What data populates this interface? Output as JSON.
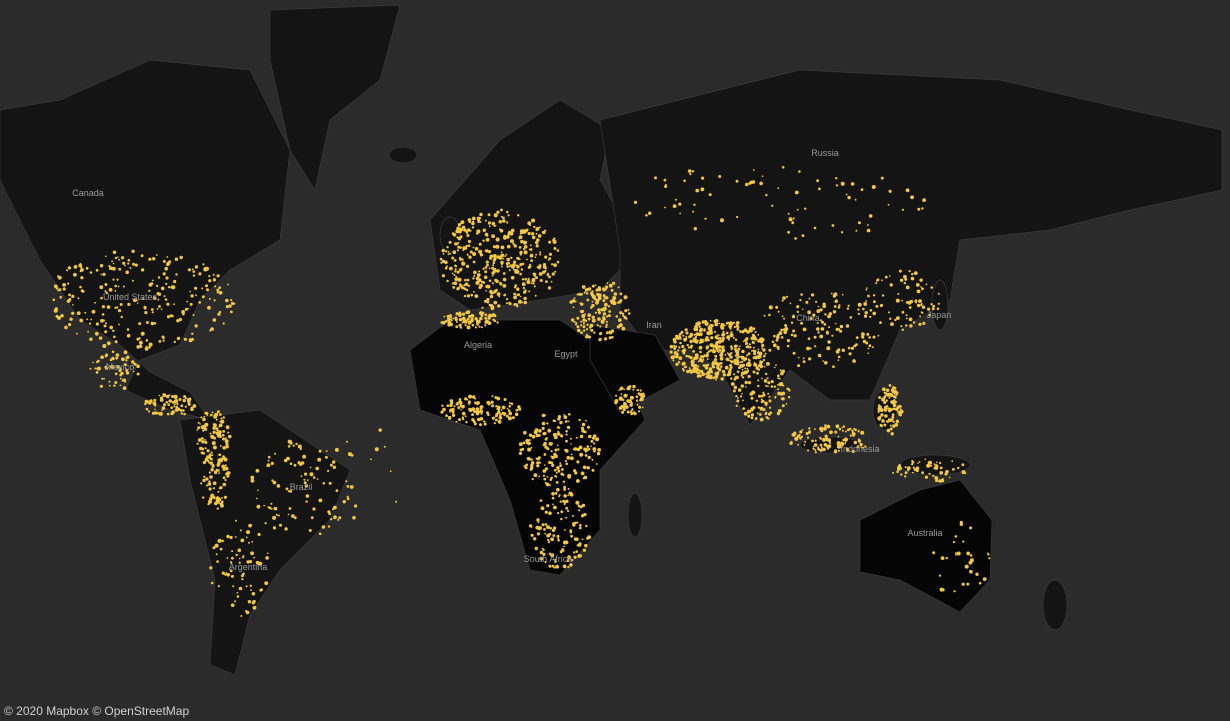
{
  "map": {
    "labels": [
      "Canada",
      "United States",
      "Mexico",
      "Brazil",
      "Argentina",
      "Algeria",
      "Egypt",
      "South Africa",
      "Iran",
      "Russia",
      "China",
      "Japan",
      "Indonesia",
      "Australia"
    ]
  },
  "attribution": "© 2020 Mapbox © OpenStreetMap"
}
